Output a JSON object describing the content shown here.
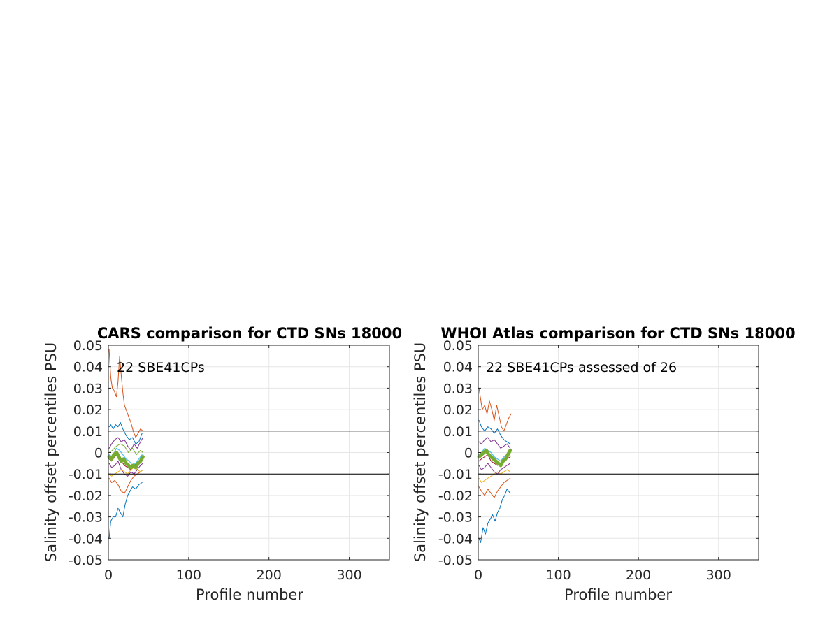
{
  "figure": {
    "background": "#ffffff"
  },
  "chart_data": [
    {
      "type": "line",
      "title": "CARS comparison for CTD SNs 18000",
      "xlabel": "Profile number",
      "ylabel": "Salinity offset percentiles PSU",
      "xlim": [
        0,
        350
      ],
      "ylim": [
        -0.05,
        0.05
      ],
      "xticks": [
        0,
        100,
        200,
        300
      ],
      "xtick_labels": [
        "0",
        "100",
        "200",
        "300"
      ],
      "yticks": [
        0.05,
        0.04,
        0.03,
        0.02,
        0.01,
        0,
        -0.01,
        -0.02,
        -0.03,
        -0.04,
        -0.05
      ],
      "ytick_labels": [
        "0.05",
        "0.04",
        "0.03",
        "0.02",
        "0.01",
        "0",
        "-0.01",
        "-0.02",
        "-0.03",
        "-0.04",
        "-0.05"
      ],
      "grid": true,
      "annotation": "22 SBE41CPs",
      "reference_lines": [
        0.01,
        -0.01
      ],
      "series": [
        {
          "color": "#0072BD",
          "width": 1,
          "x": [
            1,
            3,
            6,
            9,
            12,
            15,
            18,
            22,
            26,
            30,
            34,
            38,
            42
          ],
          "y": [
            0.012,
            0.013,
            0.011,
            0.013,
            0.012,
            0.014,
            0.011,
            0.008,
            0.006,
            0.007,
            0.004,
            0.005,
            0.009
          ]
        },
        {
          "color": "#D95319",
          "width": 1,
          "x": [
            1,
            3,
            5,
            7,
            10,
            12,
            14,
            16,
            18,
            20,
            22,
            25,
            28,
            31,
            34,
            37,
            40,
            43
          ],
          "y": [
            0.048,
            0.035,
            0.03,
            0.029,
            0.026,
            0.033,
            0.045,
            0.036,
            0.028,
            0.022,
            0.02,
            0.017,
            0.014,
            0.01,
            0.007,
            0.009,
            0.011,
            0.01
          ]
        },
        {
          "color": "#7E2F8E",
          "width": 1,
          "x": [
            1,
            4,
            8,
            12,
            16,
            20,
            24,
            28,
            32,
            36,
            40,
            43
          ],
          "y": [
            0.002,
            0.004,
            0.006,
            0.007,
            0.005,
            0.006,
            0.003,
            0.001,
            0.004,
            0.002,
            0.005,
            0.007
          ]
        },
        {
          "color": "#77AC30",
          "width": 1,
          "x": [
            1,
            5,
            10,
            15,
            20,
            25,
            30,
            35,
            40,
            43
          ],
          "y": [
            0.0,
            0.001,
            0.003,
            0.004,
            0.003,
            0.0,
            0.002,
            -0.001,
            0.001,
            0.0
          ]
        },
        {
          "color": "#4DBEEE",
          "width": 1.2,
          "x": [
            1,
            5,
            10,
            14,
            18,
            22,
            26,
            30,
            34,
            38,
            42
          ],
          "y": [
            -0.001,
            -0.002,
            0.002,
            0.001,
            -0.001,
            -0.003,
            -0.004,
            -0.006,
            -0.005,
            -0.003,
            -0.001
          ]
        },
        {
          "color": "#A2142F",
          "width": 1,
          "x": [
            1,
            4,
            8,
            12,
            16,
            20,
            24,
            28,
            32,
            36,
            40,
            43
          ],
          "y": [
            -0.003,
            -0.004,
            -0.002,
            0.0,
            -0.004,
            -0.006,
            -0.007,
            -0.008,
            -0.006,
            -0.005,
            -0.004,
            -0.003
          ]
        },
        {
          "color": "#7E2F8E",
          "width": 1,
          "x": [
            1,
            4,
            8,
            12,
            16,
            20,
            24,
            28,
            32,
            36,
            40,
            43
          ],
          "y": [
            -0.005,
            -0.007,
            -0.006,
            -0.004,
            -0.008,
            -0.01,
            -0.011,
            -0.009,
            -0.01,
            -0.008,
            -0.006,
            -0.005
          ]
        },
        {
          "color": "#D95319",
          "width": 1,
          "x": [
            1,
            4,
            8,
            12,
            16,
            20,
            24,
            28,
            32,
            36,
            40,
            43
          ],
          "y": [
            -0.012,
            -0.014,
            -0.013,
            -0.015,
            -0.018,
            -0.019,
            -0.016,
            -0.013,
            -0.011,
            -0.01,
            -0.009,
            -0.008
          ]
        },
        {
          "color": "#EDB120",
          "width": 1,
          "x": [
            1,
            4,
            8,
            12,
            16,
            20,
            24,
            28,
            32,
            36,
            40,
            43
          ],
          "y": [
            -0.01,
            -0.011,
            -0.01,
            -0.009,
            -0.008,
            -0.009,
            -0.01,
            -0.008,
            -0.007,
            -0.008,
            -0.009,
            -0.008
          ]
        },
        {
          "color": "#0072BD",
          "width": 1,
          "x": [
            1,
            3,
            6,
            9,
            12,
            15,
            18,
            21,
            24,
            27,
            30,
            34,
            38,
            42
          ],
          "y": [
            -0.04,
            -0.032,
            -0.03,
            -0.03,
            -0.026,
            -0.028,
            -0.03,
            -0.024,
            -0.02,
            -0.018,
            -0.016,
            -0.017,
            -0.015,
            -0.014
          ]
        },
        {
          "color": "#77AC30",
          "width": 5,
          "x": [
            1,
            4,
            7,
            10,
            13,
            16,
            19,
            22,
            25,
            28,
            31,
            34,
            37,
            40,
            43
          ],
          "y": [
            -0.002,
            -0.003,
            -0.001,
            0.0,
            -0.002,
            -0.004,
            -0.003,
            -0.005,
            -0.006,
            -0.007,
            -0.006,
            -0.007,
            -0.005,
            -0.004,
            -0.002
          ]
        }
      ]
    },
    {
      "type": "line",
      "title": "WHOI Atlas comparison for CTD SNs 18000",
      "xlabel": "Profile number",
      "ylabel": "Salinity offset percentiles PSU",
      "xlim": [
        0,
        350
      ],
      "ylim": [
        -0.05,
        0.05
      ],
      "xticks": [
        0,
        100,
        200,
        300
      ],
      "xtick_labels": [
        "0",
        "100",
        "200",
        "300"
      ],
      "yticks": [
        0.05,
        0.04,
        0.03,
        0.02,
        0.01,
        0,
        -0.01,
        -0.02,
        -0.03,
        -0.04,
        -0.05
      ],
      "ytick_labels": [
        "0.05",
        "0.04",
        "0.03",
        "0.02",
        "0.01",
        "0",
        "-0.01",
        "-0.02",
        "-0.03",
        "-0.04",
        "-0.05"
      ],
      "grid": true,
      "annotation": "22 SBE41CPs assessed of 26",
      "reference_lines": [
        0.01,
        -0.01
      ],
      "series": [
        {
          "color": "#D95319",
          "width": 1,
          "x": [
            1,
            3,
            5,
            8,
            11,
            14,
            17,
            20,
            23,
            26,
            29,
            32,
            35,
            38,
            41
          ],
          "y": [
            0.03,
            0.025,
            0.02,
            0.022,
            0.018,
            0.024,
            0.02,
            0.015,
            0.022,
            0.017,
            0.012,
            0.01,
            0.013,
            0.016,
            0.018
          ]
        },
        {
          "color": "#0072BD",
          "width": 1,
          "x": [
            1,
            4,
            8,
            12,
            16,
            20,
            24,
            28,
            32,
            36,
            40
          ],
          "y": [
            0.015,
            0.012,
            0.01,
            0.012,
            0.011,
            0.009,
            0.011,
            0.008,
            0.006,
            0.005,
            0.004
          ]
        },
        {
          "color": "#7E2F8E",
          "width": 1,
          "x": [
            1,
            4,
            8,
            12,
            16,
            20,
            24,
            28,
            32,
            36,
            40
          ],
          "y": [
            0.005,
            0.004,
            0.006,
            0.007,
            0.005,
            0.006,
            0.004,
            0.002,
            0.003,
            0.004,
            0.002
          ]
        },
        {
          "color": "#4DBEEE",
          "width": 1.2,
          "x": [
            1,
            4,
            8,
            12,
            16,
            20,
            24,
            28,
            32,
            36,
            40
          ],
          "y": [
            -0.001,
            0.0,
            0.002,
            0.001,
            0.0,
            -0.002,
            -0.003,
            -0.004,
            -0.002,
            -0.001,
            0.0
          ]
        },
        {
          "color": "#A2142F",
          "width": 1,
          "x": [
            1,
            4,
            8,
            12,
            16,
            20,
            24,
            28,
            32,
            36,
            40
          ],
          "y": [
            -0.004,
            -0.003,
            -0.002,
            -0.001,
            -0.004,
            -0.005,
            -0.006,
            -0.005,
            -0.004,
            -0.003,
            -0.002
          ]
        },
        {
          "color": "#7E2F8E",
          "width": 1,
          "x": [
            1,
            4,
            8,
            12,
            16,
            20,
            24,
            28,
            32,
            36,
            40
          ],
          "y": [
            -0.006,
            -0.008,
            -0.007,
            -0.005,
            -0.007,
            -0.009,
            -0.01,
            -0.008,
            -0.007,
            -0.006,
            -0.005
          ]
        },
        {
          "color": "#EDB120",
          "width": 1,
          "x": [
            1,
            4,
            8,
            12,
            16,
            20,
            24,
            28,
            32,
            36,
            40
          ],
          "y": [
            -0.012,
            -0.014,
            -0.013,
            -0.012,
            -0.011,
            -0.01,
            -0.009,
            -0.01,
            -0.009,
            -0.008,
            -0.009
          ]
        },
        {
          "color": "#D95319",
          "width": 1,
          "x": [
            1,
            4,
            8,
            12,
            16,
            20,
            24,
            28,
            32,
            36,
            40
          ],
          "y": [
            -0.016,
            -0.018,
            -0.02,
            -0.017,
            -0.019,
            -0.021,
            -0.018,
            -0.016,
            -0.014,
            -0.013,
            -0.012
          ]
        },
        {
          "color": "#0072BD",
          "width": 1,
          "x": [
            1,
            3,
            6,
            9,
            12,
            15,
            18,
            21,
            24,
            27,
            30,
            33,
            36,
            40
          ],
          "y": [
            -0.04,
            -0.042,
            -0.035,
            -0.038,
            -0.033,
            -0.031,
            -0.029,
            -0.032,
            -0.028,
            -0.026,
            -0.022,
            -0.02,
            -0.017,
            -0.019
          ]
        },
        {
          "color": "#77AC30",
          "width": 5,
          "x": [
            1,
            4,
            7,
            10,
            13,
            16,
            19,
            22,
            25,
            28,
            31,
            34,
            37,
            40
          ],
          "y": [
            -0.002,
            -0.001,
            0.0,
            0.001,
            -0.001,
            -0.002,
            -0.003,
            -0.004,
            -0.005,
            -0.006,
            -0.004,
            -0.003,
            -0.001,
            0.001
          ]
        }
      ]
    }
  ]
}
